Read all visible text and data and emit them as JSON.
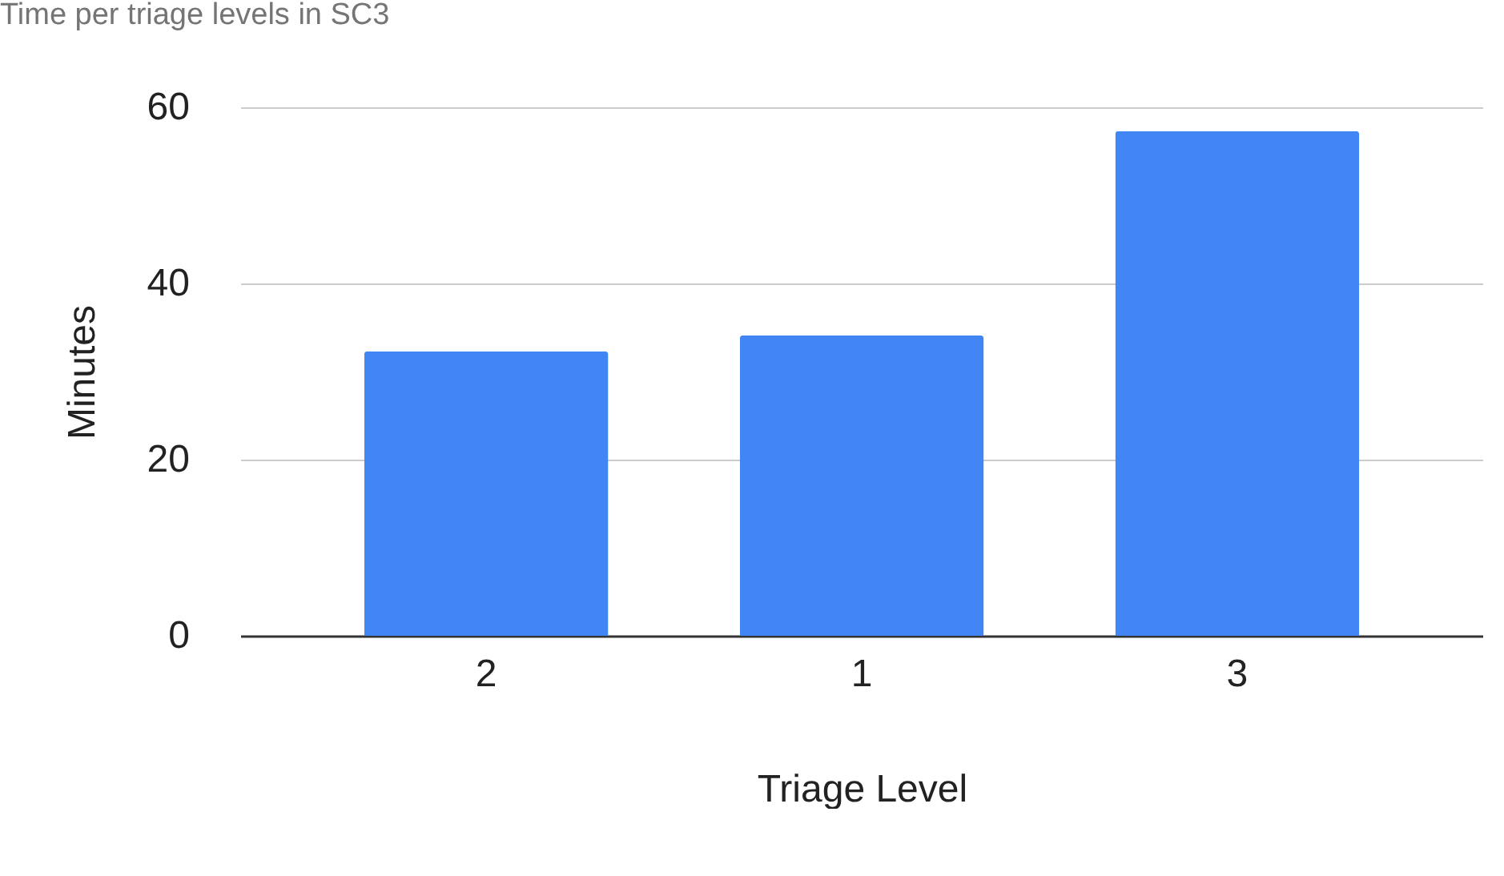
{
  "chart_data": {
    "type": "bar",
    "title": "Time per triage levels in SC3",
    "xlabel": "Triage Level",
    "ylabel": "Minutes",
    "categories": [
      "2",
      "1",
      "3"
    ],
    "values": [
      32.3,
      34.1,
      57.3
    ],
    "color": "#4285f4",
    "ylim": [
      0,
      60
    ],
    "yticks": [
      0,
      20,
      40,
      60
    ],
    "grid": "y",
    "legend": false
  }
}
